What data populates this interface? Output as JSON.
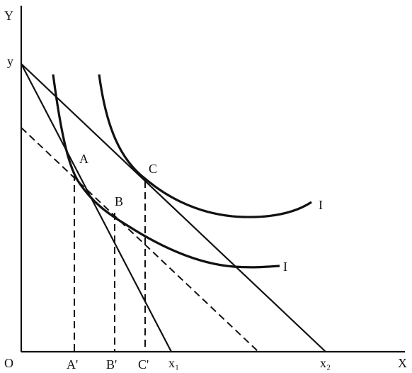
{
  "axes": {
    "y_axis": "Y",
    "x_axis": "X",
    "origin": "O",
    "y_intercept": "y"
  },
  "points": {
    "a": "A",
    "b": "B",
    "c": "C"
  },
  "x_marks": {
    "a": "A'",
    "b": "B'",
    "c": "C'",
    "x1": "x₁",
    "x2": "x₂"
  },
  "curves": {
    "upper": "I",
    "lower": "I"
  }
}
